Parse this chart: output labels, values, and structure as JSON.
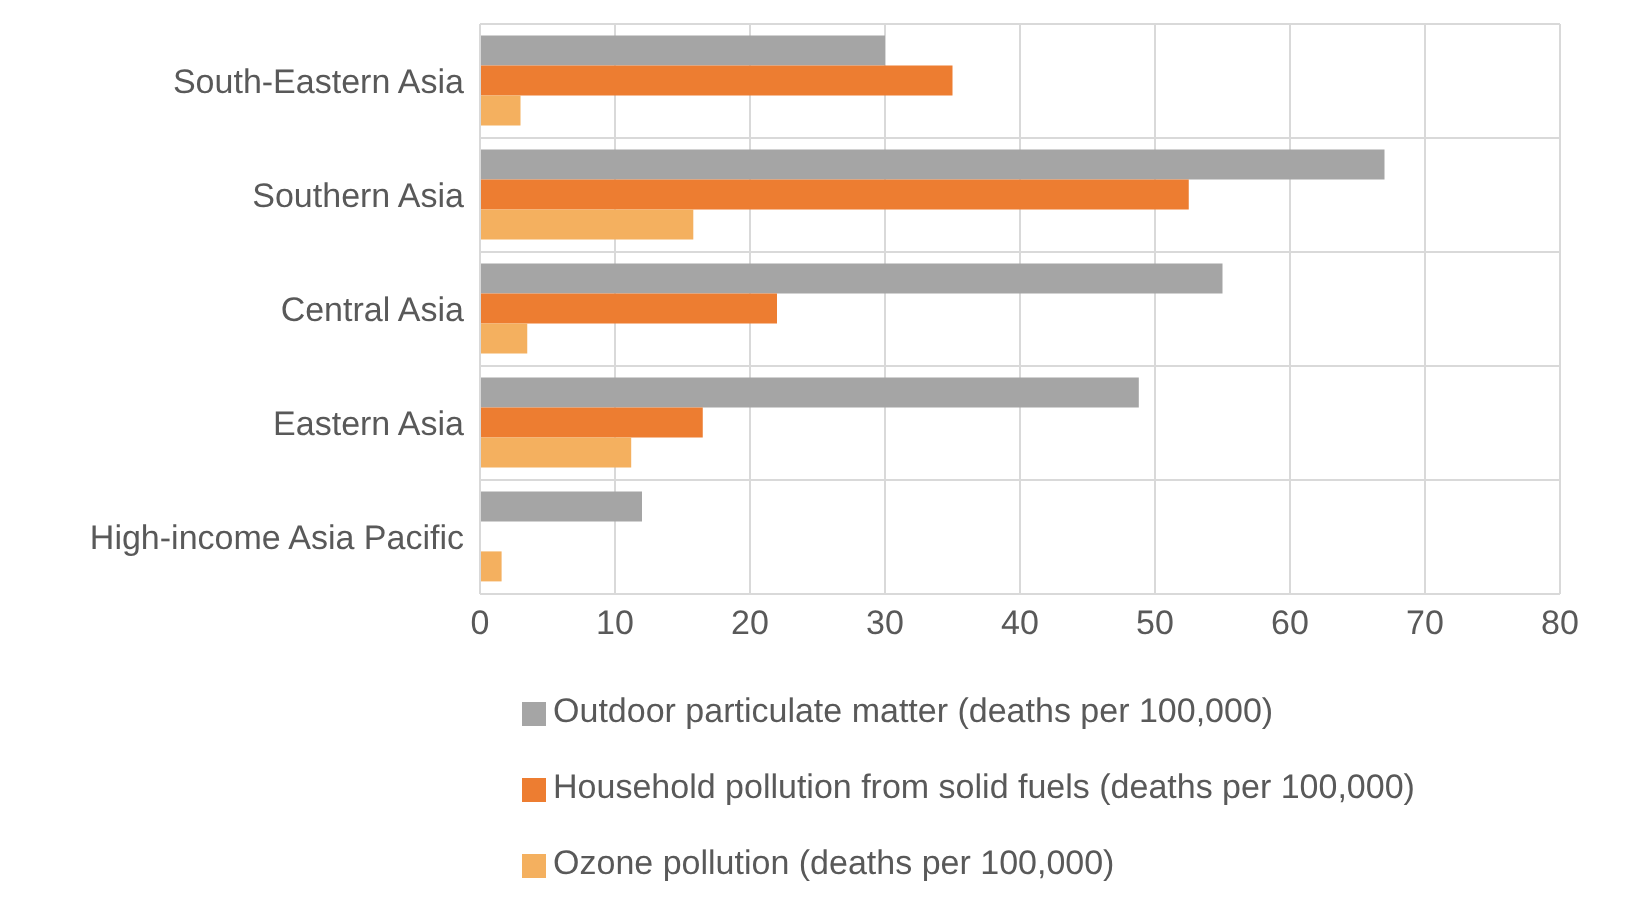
{
  "chart_data": {
    "type": "bar",
    "orientation": "horizontal",
    "categories": [
      "South-Eastern Asia",
      "Southern Asia",
      "Central Asia",
      "Eastern Asia",
      "High-income Asia Pacific"
    ],
    "series": [
      {
        "name": "Outdoor particulate matter (deaths per 100,000)",
        "color": "#a5a5a5",
        "values": [
          30,
          67,
          55,
          48.8,
          12
        ]
      },
      {
        "name": "Household pollution from solid fuels (deaths per 100,000)",
        "color": "#ed7d31",
        "values": [
          35,
          52.5,
          22,
          16.5,
          null
        ]
      },
      {
        "name": "Ozone pollution (deaths per 100,000)",
        "color": "#f4b05f",
        "values": [
          3,
          15.8,
          3.5,
          11.2,
          1.6
        ]
      }
    ],
    "xlim": [
      0,
      80
    ],
    "xticks": [
      0,
      10,
      20,
      30,
      40,
      50,
      60,
      70,
      80
    ],
    "grid": true,
    "legend": "bottom"
  }
}
